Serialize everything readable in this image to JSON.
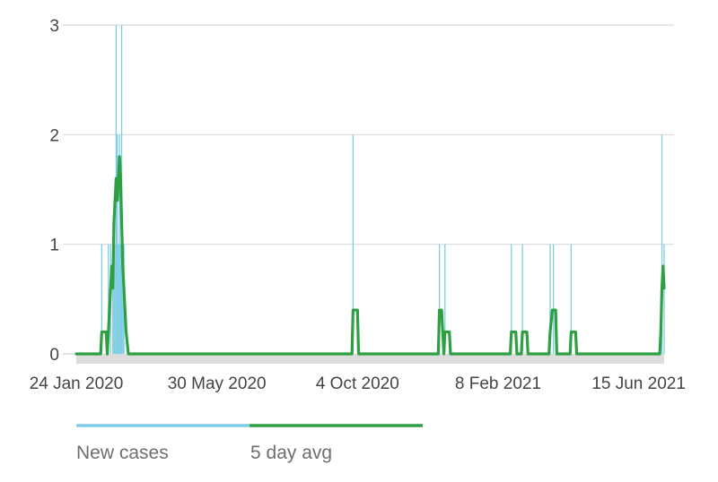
{
  "chart_data": {
    "type": "bar",
    "x_axis": {
      "type": "date",
      "range": [
        "2020-01-24",
        "2021-07-08"
      ],
      "tick_labels": [
        "24 Jan 2020",
        "30 May 2020",
        "4 Oct 2020",
        "8 Feb 2021",
        "15 Jun 2021"
      ],
      "tick_dates": [
        "2020-01-24",
        "2020-05-30",
        "2020-10-04",
        "2021-02-08",
        "2021-06-15"
      ]
    },
    "y_axis": {
      "range": [
        0,
        3
      ],
      "tick_labels": [
        "0",
        "1",
        "2",
        "3"
      ],
      "tick_values": [
        0,
        1,
        2,
        3
      ]
    },
    "grid": true,
    "legend_position": "bottom",
    "series": [
      {
        "name": "New cases",
        "type": "bar",
        "color": "#7fcde5",
        "points": [
          [
            "2020-02-16",
            1
          ],
          [
            "2020-02-22",
            1
          ],
          [
            "2020-02-24",
            1
          ],
          [
            "2020-02-26",
            1
          ],
          [
            "2020-02-27",
            1
          ],
          [
            "2020-02-28",
            1
          ],
          [
            "2020-02-29",
            3
          ],
          [
            "2020-03-01",
            2
          ],
          [
            "2020-03-02",
            1
          ],
          [
            "2020-03-03",
            2
          ],
          [
            "2020-03-04",
            1
          ],
          [
            "2020-03-05",
            3
          ],
          [
            "2020-03-06",
            1
          ],
          [
            "2020-03-07",
            1
          ],
          [
            "2020-09-30",
            2
          ],
          [
            "2020-12-17",
            1
          ],
          [
            "2020-12-22",
            1
          ],
          [
            "2021-02-20",
            1
          ],
          [
            "2021-03-02",
            1
          ],
          [
            "2021-03-27",
            1
          ],
          [
            "2021-03-30",
            1
          ],
          [
            "2021-04-15",
            1
          ],
          [
            "2021-07-06",
            2
          ],
          [
            "2021-07-08",
            1
          ]
        ]
      },
      {
        "name": "5 day avg",
        "type": "line",
        "color": "#2ea043",
        "points": [
          [
            "2020-01-24",
            0
          ],
          [
            "2020-02-15",
            0
          ],
          [
            "2020-02-16",
            0.2
          ],
          [
            "2020-02-20",
            0.2
          ],
          [
            "2020-02-21",
            0
          ],
          [
            "2020-02-22",
            0.2
          ],
          [
            "2020-02-23",
            0.4
          ],
          [
            "2020-02-24",
            0.6
          ],
          [
            "2020-02-25",
            0.8
          ],
          [
            "2020-02-26",
            0.6
          ],
          [
            "2020-02-27",
            1.2
          ],
          [
            "2020-02-28",
            1.4
          ],
          [
            "2020-02-29",
            1.6
          ],
          [
            "2020-03-01",
            1.4
          ],
          [
            "2020-03-02",
            1.6
          ],
          [
            "2020-03-03",
            1.8
          ],
          [
            "2020-03-04",
            1.6
          ],
          [
            "2020-03-05",
            1.2
          ],
          [
            "2020-03-06",
            0.8
          ],
          [
            "2020-03-07",
            0.6
          ],
          [
            "2020-03-08",
            0.4
          ],
          [
            "2020-03-09",
            0.2
          ],
          [
            "2020-03-11",
            0
          ],
          [
            "2020-09-29",
            0
          ],
          [
            "2020-09-30",
            0.4
          ],
          [
            "2020-10-04",
            0.4
          ],
          [
            "2020-10-05",
            0
          ],
          [
            "2020-12-16",
            0
          ],
          [
            "2020-12-17",
            0.4
          ],
          [
            "2020-12-19",
            0.4
          ],
          [
            "2020-12-21",
            0
          ],
          [
            "2020-12-22",
            0.2
          ],
          [
            "2020-12-26",
            0.2
          ],
          [
            "2020-12-27",
            0
          ],
          [
            "2021-02-19",
            0
          ],
          [
            "2021-02-20",
            0.2
          ],
          [
            "2021-02-24",
            0.2
          ],
          [
            "2021-02-25",
            0
          ],
          [
            "2021-03-01",
            0
          ],
          [
            "2021-03-02",
            0.2
          ],
          [
            "2021-03-06",
            0.2
          ],
          [
            "2021-03-07",
            0
          ],
          [
            "2021-03-26",
            0
          ],
          [
            "2021-03-27",
            0.2
          ],
          [
            "2021-03-29",
            0.4
          ],
          [
            "2021-04-01",
            0.4
          ],
          [
            "2021-04-02",
            0
          ],
          [
            "2021-04-14",
            0
          ],
          [
            "2021-04-15",
            0.2
          ],
          [
            "2021-04-19",
            0.2
          ],
          [
            "2021-04-20",
            0
          ],
          [
            "2021-07-04",
            0
          ],
          [
            "2021-07-05",
            0.2
          ],
          [
            "2021-07-06",
            0.6
          ],
          [
            "2021-07-07",
            0.8
          ],
          [
            "2021-07-08",
            0.6
          ]
        ]
      }
    ]
  }
}
